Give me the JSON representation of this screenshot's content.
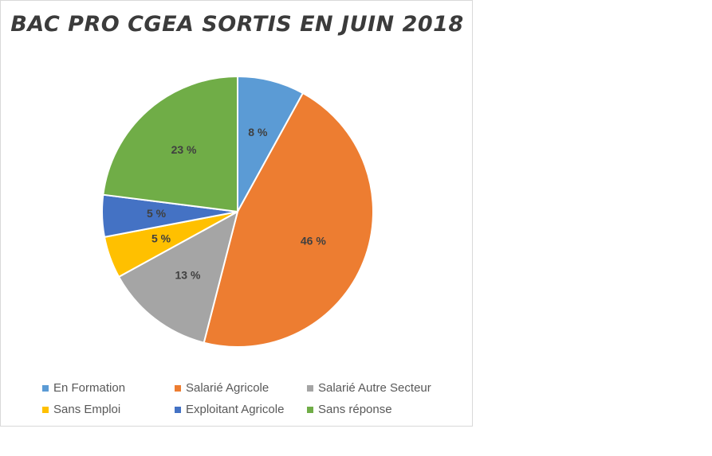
{
  "chart_data": {
    "type": "pie",
    "title": "BAC PRO CGEA SORTIS EN JUIN 2018",
    "legend_position": "bottom",
    "slices": [
      {
        "name": "En Formation",
        "value": 8,
        "label": "8 %",
        "color": "#5b9bd5"
      },
      {
        "name": "Salarié Agricole",
        "value": 46,
        "label": "46 %",
        "color": "#ed7d31"
      },
      {
        "name": "Salarié Autre Secteur",
        "value": 13,
        "label": "13 %",
        "color": "#a5a5a5"
      },
      {
        "name": "Sans Emploi",
        "value": 5,
        "label": "5 %",
        "color": "#ffc000"
      },
      {
        "name": "Exploitant Agricole",
        "value": 5,
        "label": "5 %",
        "color": "#4472c4"
      },
      {
        "name": "Sans réponse",
        "value": 23,
        "label": "23 %",
        "color": "#70ad47"
      }
    ]
  }
}
